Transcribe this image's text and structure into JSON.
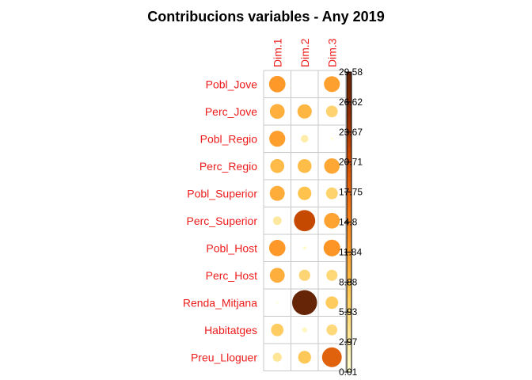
{
  "chart_data": {
    "type": "heatmap",
    "title": "Contribucions variables - Any 2019",
    "columns": [
      "Dim.1",
      "Dim.2",
      "Dim.3"
    ],
    "rows": [
      "Pobl_Jove",
      "Perc_Jove",
      "Pobl_Regio",
      "Perc_Regio",
      "Pobl_Superior",
      "Perc_Superior",
      "Pobl_Host",
      "Perc_Host",
      "Renda_Mitjana",
      "Habitatges",
      "Preu_Lloguer"
    ],
    "values": [
      [
        12.8,
        0.01,
        12.0
      ],
      [
        10.5,
        9.8,
        6.5
      ],
      [
        12.2,
        2.7,
        0.3
      ],
      [
        9.3,
        9.2,
        11.3
      ],
      [
        10.7,
        8.7,
        6.6
      ],
      [
        3.5,
        21.5,
        11.7
      ],
      [
        12.7,
        0.5,
        13.2
      ],
      [
        10.6,
        6.1,
        5.9
      ],
      [
        0.2,
        29.58,
        7.5
      ],
      [
        7.4,
        1.2,
        5.6
      ],
      [
        3.8,
        7.9,
        18.5
      ]
    ],
    "colorbar": {
      "min": 0.01,
      "max": 29.58,
      "ticks": [
        "29.58",
        "26.62",
        "23.67",
        "20.71",
        "17.75",
        "14.8",
        "11.84",
        "8.88",
        "5.93",
        "2.97",
        "0.01"
      ]
    },
    "colors": {
      "label": "#ee1b1b",
      "grid": "#c8c8c8",
      "scale": [
        "#FFFFD4",
        "#FEE391",
        "#FEC44F",
        "#FE9929",
        "#EC7014",
        "#CC4C02",
        "#8C2D04",
        "#662506"
      ]
    }
  }
}
